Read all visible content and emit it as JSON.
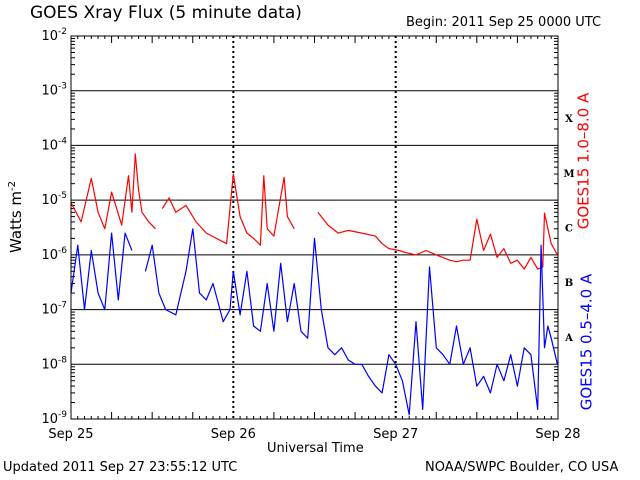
{
  "header": {
    "title": "GOES Xray Flux (5 minute data)",
    "begin": "Begin:  2011 Sep 25 0000 UTC"
  },
  "footer": {
    "updated": "Updated 2011 Sep 27 23:55:12 UTC",
    "credit": "NOAA/SWPC Boulder, CO USA"
  },
  "colors": {
    "short": "#0000ff",
    "long": "#ff0000",
    "grid": "#000000"
  },
  "chart_data": {
    "type": "line",
    "title": "GOES Xray Flux (5 minute data)",
    "xlabel": "Universal Time",
    "ylabel_base": "Watts m",
    "ylabel_exp": "-2",
    "yscale": "log",
    "ylim": [
      1e-09,
      0.01
    ],
    "xlim": [
      "2011-09-25",
      "2011-09-28"
    ],
    "grid": true,
    "x_ticks": [
      "Sep 25",
      "Sep 26",
      "Sep 27",
      "Sep 28"
    ],
    "y_ticks": [
      {
        "base": "10",
        "exp": "-9",
        "value": 1e-09
      },
      {
        "base": "10",
        "exp": "-8",
        "value": 1e-08
      },
      {
        "base": "10",
        "exp": "-7",
        "value": 1e-07
      },
      {
        "base": "10",
        "exp": "-6",
        "value": 1e-06
      },
      {
        "base": "10",
        "exp": "-5",
        "value": 1e-05
      },
      {
        "base": "10",
        "exp": "-4",
        "value": 0.0001
      },
      {
        "base": "10",
        "exp": "-3",
        "value": 0.001
      },
      {
        "base": "10",
        "exp": "-2",
        "value": 0.01
      }
    ],
    "flare_classes": [
      {
        "label": "X",
        "value": 0.000316
      },
      {
        "label": "M",
        "value": 3.16e-05
      },
      {
        "label": "C",
        "value": 3.16e-06
      },
      {
        "label": "B",
        "value": 3.16e-07
      },
      {
        "label": "A",
        "value": 3.16e-08
      }
    ],
    "series": [
      {
        "name": "GOES15 1.0–8.0 A",
        "color": "#ff0000",
        "x": [
          "2011-09-25 00:00",
          "2011-09-25 01:30",
          "2011-09-25 03:00",
          "2011-09-25 04:00",
          "2011-09-25 05:00",
          "2011-09-25 06:00",
          "2011-09-25 07:30",
          "2011-09-25 08:30",
          "2011-09-25 09:00",
          "2011-09-25 09:30",
          "2011-09-25 10:00",
          "2011-09-25 10:30",
          "2011-09-25 11:30",
          "2011-09-25 12:30",
          null,
          "2011-09-25 13:30",
          "2011-09-25 14:30",
          "2011-09-25 15:30",
          "2011-09-25 17:00",
          "2011-09-25 18:30",
          "2011-09-25 20:00",
          "2011-09-25 21:30",
          "2011-09-25 23:00",
          "2011-09-26 00:00",
          "2011-09-26 01:00",
          "2011-09-26 02:00",
          "2011-09-26 03:00",
          "2011-09-26 04:00",
          "2011-09-26 04:30",
          "2011-09-26 05:00",
          "2011-09-26 06:00",
          "2011-09-26 07:30",
          "2011-09-26 08:00",
          "2011-09-26 09:00",
          null,
          "2011-09-26 12:30",
          "2011-09-26 14:00",
          "2011-09-26 15:30",
          "2011-09-26 17:00",
          "2011-09-26 19:00",
          "2011-09-26 21:00",
          "2011-09-26 22:00",
          "2011-09-26 23:00",
          "2011-09-27 00:30",
          "2011-09-27 01:30",
          "2011-09-27 03:00",
          "2011-09-27 04:30",
          "2011-09-27 06:00",
          "2011-09-27 08:00",
          "2011-09-27 09:00",
          "2011-09-27 10:00",
          "2011-09-27 11:00",
          "2011-09-27 12:00",
          "2011-09-27 13:00",
          "2011-09-27 14:00",
          "2011-09-27 15:00",
          "2011-09-27 16:00",
          "2011-09-27 17:00",
          "2011-09-27 18:00",
          "2011-09-27 19:00",
          "2011-09-27 20:00",
          "2011-09-27 21:00",
          "2011-09-27 21:45",
          "2011-09-27 22:00",
          "2011-09-27 23:00",
          "2011-09-27 23:55"
        ],
        "values": [
          9e-06,
          4e-06,
          2.5e-05,
          6e-06,
          3e-06,
          1.4e-05,
          3.5e-06,
          2.8e-05,
          6e-06,
          7e-05,
          1.5e-05,
          6e-06,
          4e-06,
          3e-06,
          null,
          7e-06,
          1.1e-05,
          6e-06,
          8e-06,
          4e-06,
          2.5e-06,
          2e-06,
          1.6e-06,
          3e-05,
          5e-06,
          2.5e-06,
          2e-06,
          1.5e-06,
          2.8e-05,
          3e-06,
          2.2e-06,
          2.6e-05,
          5e-06,
          3e-06,
          null,
          6e-06,
          3.5e-06,
          2.5e-06,
          2.8e-06,
          2.5e-06,
          2.2e-06,
          1.6e-06,
          1.3e-06,
          1.2e-06,
          1.1e-06,
          1e-06,
          1.2e-06,
          1e-06,
          8e-07,
          7.5e-07,
          8e-07,
          8e-07,
          4.5e-06,
          1.2e-06,
          2.4e-06,
          9e-07,
          1.3e-06,
          7e-07,
          8e-07,
          5.5e-07,
          9e-07,
          5.5e-07,
          6e-07,
          5.8e-06,
          1.6e-06,
          1e-06
        ]
      },
      {
        "name": "GOES15 0.5–4.0 A",
        "color": "#0000ff",
        "x": [
          "2011-09-25 00:00",
          "2011-09-25 01:00",
          "2011-09-25 02:00",
          "2011-09-25 03:00",
          "2011-09-25 04:00",
          "2011-09-25 05:00",
          "2011-09-25 06:00",
          "2011-09-25 07:00",
          "2011-09-25 08:00",
          "2011-09-25 09:00",
          null,
          "2011-09-25 11:00",
          "2011-09-25 12:00",
          "2011-09-25 13:00",
          "2011-09-25 14:00",
          "2011-09-25 15:30",
          "2011-09-25 17:00",
          "2011-09-25 18:00",
          "2011-09-25 19:00",
          "2011-09-25 20:00",
          "2011-09-25 21:00",
          "2011-09-25 22:30",
          "2011-09-25 23:30",
          "2011-09-26 00:00",
          "2011-09-26 01:00",
          "2011-09-26 02:00",
          "2011-09-26 03:00",
          "2011-09-26 04:00",
          "2011-09-26 05:00",
          "2011-09-26 06:00",
          "2011-09-26 07:00",
          "2011-09-26 08:00",
          "2011-09-26 09:00",
          "2011-09-26 10:00",
          "2011-09-26 11:00",
          "2011-09-26 12:00",
          "2011-09-26 13:00",
          "2011-09-26 14:00",
          "2011-09-26 15:00",
          "2011-09-26 16:00",
          "2011-09-26 17:00",
          "2011-09-26 18:00",
          "2011-09-26 19:00",
          "2011-09-26 20:00",
          "2011-09-26 21:00",
          "2011-09-26 22:00",
          "2011-09-26 23:00",
          "2011-09-27 00:00",
          "2011-09-27 01:00",
          "2011-09-27 02:00",
          "2011-09-27 03:00",
          "2011-09-27 04:00",
          "2011-09-27 05:00",
          "2011-09-27 06:00",
          "2011-09-27 07:00",
          "2011-09-27 08:00",
          "2011-09-27 09:00",
          "2011-09-27 10:00",
          "2011-09-27 11:00",
          "2011-09-27 12:00",
          "2011-09-27 13:00",
          "2011-09-27 14:00",
          "2011-09-27 15:00",
          "2011-09-27 16:00",
          "2011-09-27 17:00",
          "2011-09-27 18:00",
          "2011-09-27 19:00",
          "2011-09-27 20:00",
          "2011-09-27 21:00",
          "2011-09-27 21:30",
          "2011-09-27 22:00",
          "2011-09-27 22:30",
          "2011-09-27 23:00",
          "2011-09-27 23:55"
        ],
        "values": [
          2e-07,
          1.5e-06,
          1e-07,
          1.2e-06,
          2e-07,
          1e-07,
          2.5e-06,
          1.5e-07,
          2.5e-06,
          1.2e-06,
          null,
          5e-07,
          1.5e-06,
          2e-07,
          1e-07,
          8e-08,
          5e-07,
          3e-06,
          2e-07,
          1.5e-07,
          3e-07,
          6e-08,
          1e-07,
          5e-07,
          8e-08,
          5e-07,
          5e-08,
          4e-08,
          3e-07,
          4e-08,
          7e-07,
          6e-08,
          3e-07,
          4e-08,
          3e-08,
          2e-06,
          1e-07,
          2e-08,
          1.5e-08,
          2e-08,
          1.2e-08,
          1e-08,
          1e-08,
          6e-09,
          4e-09,
          3e-09,
          1.5e-08,
          1e-08,
          5e-09,
          1.2e-09,
          6e-08,
          1.5e-09,
          6e-07,
          2e-08,
          1.5e-08,
          1e-08,
          5e-08,
          1e-08,
          2e-08,
          4e-09,
          6e-09,
          3e-09,
          1e-08,
          5e-09,
          1.5e-08,
          4e-09,
          2e-08,
          1.5e-08,
          1.5e-09,
          1.5e-06,
          2e-08,
          5e-08,
          3e-08,
          1e-08
        ]
      }
    ]
  }
}
